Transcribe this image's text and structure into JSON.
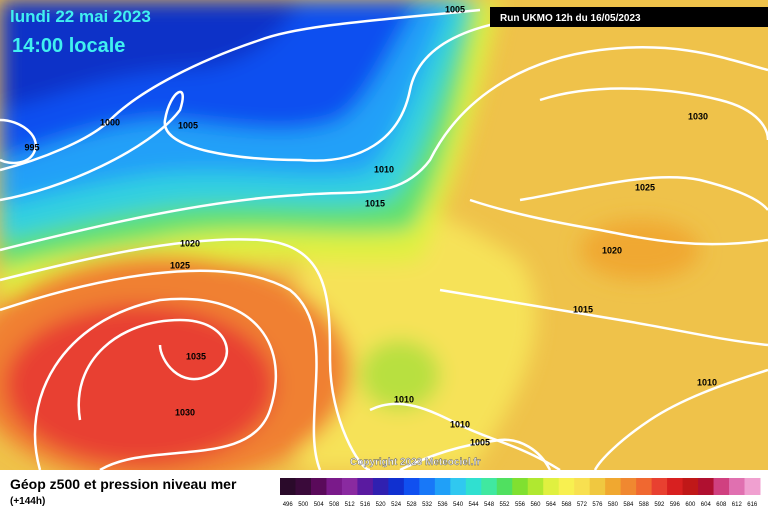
{
  "header": {
    "date": "lundi 22 mai 2023",
    "time": "14:00 locale",
    "run": "Run UKMO 12h du 16/05/2023"
  },
  "isobar_labels": [
    1005,
    1000,
    995,
    1005,
    1010,
    1015,
    1020,
    1025,
    1035,
    1030,
    1030,
    1025,
    1020,
    1015,
    1010,
    1010,
    1010,
    1005
  ],
  "copyright": "Copyright 2023 Meteociel.fr",
  "footer": {
    "title": "Géop z500 et pression niveau mer",
    "lead": "(+144h)"
  },
  "colorbar": {
    "labels": [
      496,
      500,
      504,
      508,
      512,
      516,
      520,
      524,
      528,
      532,
      536,
      540,
      544,
      548,
      552,
      556,
      560,
      564,
      568,
      572,
      576,
      580,
      584,
      588,
      592,
      596,
      600,
      604,
      608,
      612,
      616
    ],
    "colors": [
      "#2a0a2a",
      "#3a0a3a",
      "#5a0a5a",
      "#7a1a8a",
      "#8a2aa0",
      "#5a1aa0",
      "#3020b0",
      "#1030d0",
      "#1050f0",
      "#1878f8",
      "#20a0f8",
      "#30c8f0",
      "#30e0d0",
      "#40e8a0",
      "#50e060",
      "#80e030",
      "#b0e830",
      "#e0f040",
      "#f8f050",
      "#f8e050",
      "#f0c840",
      "#f0a830",
      "#f08830",
      "#f06830",
      "#e84030",
      "#d82020",
      "#c01818",
      "#b01030",
      "#d04080",
      "#e070b0",
      "#f0a0d0"
    ]
  }
}
